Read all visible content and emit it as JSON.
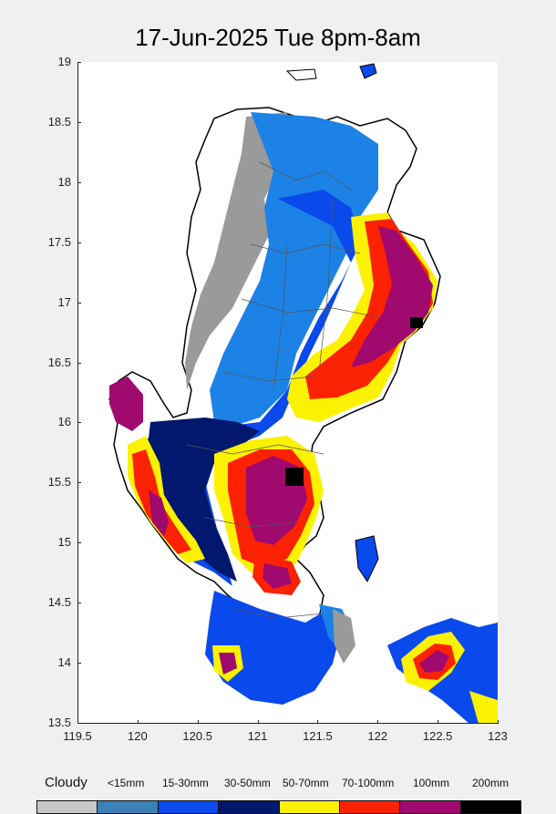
{
  "title": "17-Jun-2025 Tue 8pm-8am",
  "y_ticks": [
    "19",
    "18.5",
    "18",
    "17.5",
    "17",
    "16.5",
    "16",
    "15.5",
    "15",
    "14.5",
    "14",
    "13.5"
  ],
  "x_ticks": [
    "119.5",
    "120",
    "120.5",
    "121",
    "121.5",
    "122",
    "122.5",
    "123"
  ],
  "legend": {
    "items": [
      {
        "label": "Cloudy",
        "color": "#c8c8c8"
      },
      {
        "label": "<15mm",
        "color": "#3b82b6"
      },
      {
        "label": "15-30mm",
        "color": "#0a49ec"
      },
      {
        "label": "30-50mm",
        "color": "#02186e"
      },
      {
        "label": "50-70mm",
        "color": "#fbf102"
      },
      {
        "label": "70-100mm",
        "color": "#fb2204"
      },
      {
        "label": "100mm",
        "color": "#a0096e"
      },
      {
        "label": "200mm",
        "color": "#000000"
      }
    ]
  },
  "map_colors": {
    "cloudy": "#9a9a9a",
    "lt15": "#1c82e6",
    "r15_30": "#0a49ec",
    "r30_50": "#02186e",
    "r50_70": "#fbf102",
    "r70_100": "#fb2204",
    "r100": "#a0096e",
    "r200": "#000000"
  }
}
